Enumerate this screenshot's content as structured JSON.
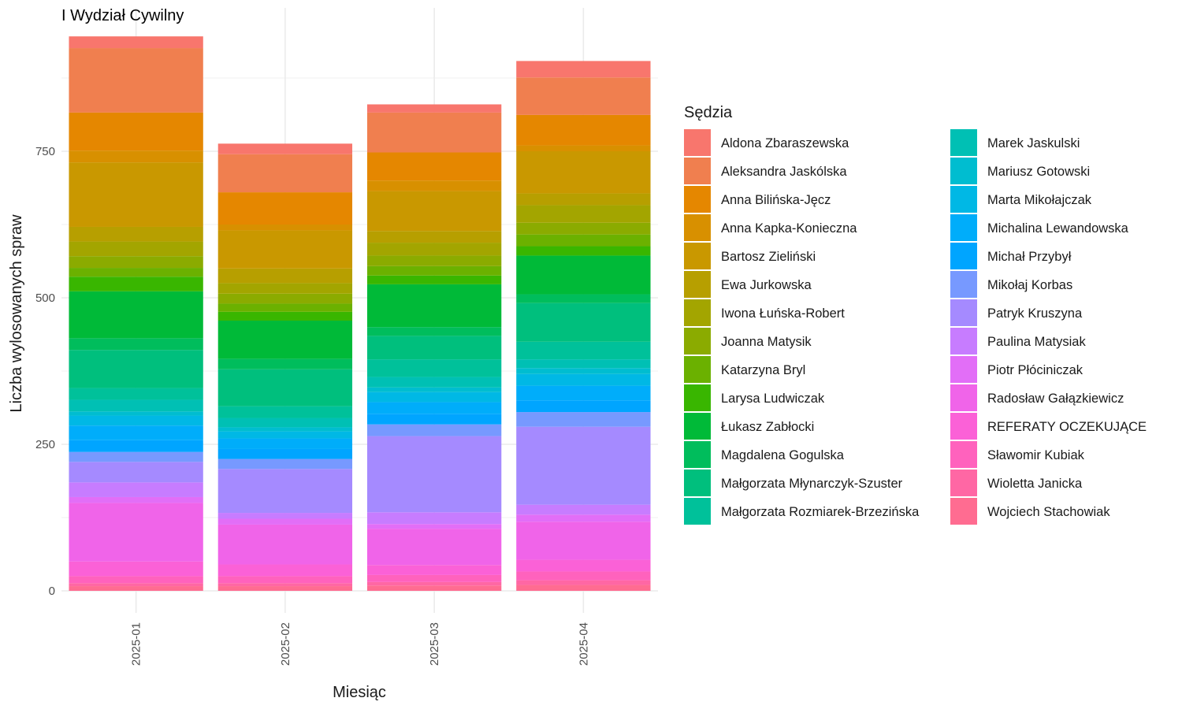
{
  "chart_data": {
    "type": "bar",
    "stacked": true,
    "title": "I Wydział Cywilny",
    "xlabel": "Miesiąc",
    "ylabel": "Liczba wylosowanych spraw",
    "ylim": [
      0,
      970
    ],
    "yticks": [
      0,
      250,
      500,
      750
    ],
    "grid": true,
    "legend_title": "Sędzia",
    "legend_position": "right",
    "categories": [
      "2025-01",
      "2025-02",
      "2025-03",
      "2025-04"
    ],
    "series": [
      {
        "name": "Aldona Zbaraszewska",
        "color": "#F8766D",
        "values": [
          20,
          18,
          14,
          28
        ]
      },
      {
        "name": "Aleksandra Jaskólska",
        "color": "#F07F4F",
        "values": [
          110,
          65,
          68,
          64
        ]
      },
      {
        "name": "Anna Bilińska-Jęcz",
        "color": "#E58700",
        "values": [
          65,
          55,
          48,
          52
        ]
      },
      {
        "name": "Anna Kapka-Konieczna",
        "color": "#D89000",
        "values": [
          20,
          10,
          18,
          10
        ]
      },
      {
        "name": "Bartosz Zieliński",
        "color": "#C99800",
        "values": [
          110,
          65,
          68,
          72
        ]
      },
      {
        "name": "Ewa Jurkowska",
        "color": "#B79F00",
        "values": [
          25,
          25,
          20,
          20
        ]
      },
      {
        "name": "Iwona Łuńska-Robert",
        "color": "#A3A500",
        "values": [
          25,
          18,
          22,
          30
        ]
      },
      {
        "name": "Joanna Matysik",
        "color": "#8BAB00",
        "values": [
          20,
          17,
          18,
          20
        ]
      },
      {
        "name": "Katarzyna Bryl",
        "color": "#6BB100",
        "values": [
          15,
          14,
          16,
          20
        ]
      },
      {
        "name": "Larysa Ludwiczak",
        "color": "#39B600",
        "values": [
          25,
          15,
          15,
          16
        ]
      },
      {
        "name": "Łukasz Zabłocki",
        "color": "#00BA38",
        "values": [
          80,
          65,
          73,
          66
        ]
      },
      {
        "name": "Magdalena Gogulska",
        "color": "#00BD5C",
        "values": [
          20,
          18,
          15,
          15
        ]
      },
      {
        "name": "Małgorzata Młynarczyk-Szuster",
        "color": "#00BF7D",
        "values": [
          65,
          63,
          40,
          66
        ]
      },
      {
        "name": "Małgorzata Rozmiarek-Brzezińska",
        "color": "#00C19A",
        "values": [
          20,
          20,
          30,
          30
        ]
      },
      {
        "name": "Marek Jaskulski",
        "color": "#00C0B4",
        "values": [
          20,
          16,
          18,
          15
        ]
      },
      {
        "name": "Mariusz Gotowski",
        "color": "#00BDD0",
        "values": [
          7,
          7,
          8,
          10
        ]
      },
      {
        "name": "Marta Mikołajczak",
        "color": "#00B8E5",
        "values": [
          17,
          12,
          17,
          20
        ]
      },
      {
        "name": "Michalina Lewandowska",
        "color": "#00ADFA",
        "values": [
          25,
          18,
          20,
          25
        ]
      },
      {
        "name": "Michał Przybył",
        "color": "#00A5FF",
        "values": [
          20,
          17,
          18,
          20
        ]
      },
      {
        "name": "Mikołaj Korbas",
        "color": "#7799FF",
        "values": [
          17,
          17,
          20,
          25
        ]
      },
      {
        "name": "Patryk Kruszyna",
        "color": "#A58AFF",
        "values": [
          35,
          75,
          130,
          133
        ]
      },
      {
        "name": "Paulina Matysiak",
        "color": "#C77CFF",
        "values": [
          25,
          10,
          20,
          17
        ]
      },
      {
        "name": "Piotr Płóciniczak",
        "color": "#E26EF7",
        "values": [
          10,
          10,
          8,
          12
        ]
      },
      {
        "name": "Radosław Gałązkiewicz",
        "color": "#F064E9",
        "values": [
          100,
          68,
          62,
          65
        ]
      },
      {
        "name": "REFERATY OCZEKUJĄCE",
        "color": "#FB61D7",
        "values": [
          25,
          20,
          17,
          20
        ]
      },
      {
        "name": "Sławomir Kubiak",
        "color": "#FF62BD",
        "values": [
          12,
          12,
          12,
          15
        ]
      },
      {
        "name": "Wioletta Janicka",
        "color": "#FF67A4",
        "values": [
          5,
          5,
          6,
          8
        ]
      },
      {
        "name": "Wojciech Stachowiak",
        "color": "#FF6C91",
        "values": [
          8,
          8,
          9,
          10
        ]
      }
    ]
  }
}
